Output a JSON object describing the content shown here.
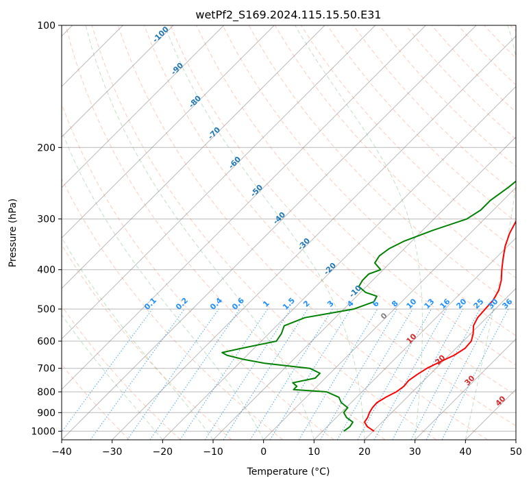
{
  "chart_data": {
    "type": "line",
    "title": "wetPf2_S169.2024.115.15.50.E31",
    "xlabel": "Temperature (°C)",
    "ylabel": "Pressure (hPa)",
    "xlim": [
      -40,
      50
    ],
    "ylim": [
      1050,
      100
    ],
    "y_scale": "log",
    "x_ticks": [
      -40,
      -30,
      -20,
      -10,
      0,
      10,
      20,
      30,
      40,
      50
    ],
    "x_tick_labels": [
      "−40",
      "−30",
      "−20",
      "−10",
      "0",
      "10",
      "20",
      "30",
      "40",
      "50"
    ],
    "y_ticks": [
      100,
      200,
      300,
      400,
      500,
      600,
      700,
      800,
      900,
      1000
    ],
    "y_tick_labels": [
      "100",
      "200",
      "300",
      "400",
      "500",
      "600",
      "700",
      "800",
      "900",
      "1000"
    ],
    "grid": true,
    "skew_deg": 45,
    "series": [
      {
        "color": "#ff0000",
        "points": [
          [
            1000,
            20.2
          ],
          [
            975,
            18.0
          ],
          [
            950,
            16.5
          ],
          [
            925,
            16.2
          ],
          [
            900,
            15.6
          ],
          [
            875,
            15.2
          ],
          [
            850,
            15.1
          ],
          [
            825,
            15.8
          ],
          [
            800,
            16.8
          ],
          [
            775,
            17.2
          ],
          [
            750,
            17.0
          ],
          [
            725,
            17.5
          ],
          [
            700,
            18.2
          ],
          [
            675,
            19.5
          ],
          [
            650,
            21.0
          ],
          [
            625,
            21.8
          ],
          [
            600,
            21.6
          ],
          [
            575,
            20.5
          ],
          [
            550,
            19.0
          ],
          [
            525,
            18.2
          ],
          [
            500,
            18.0
          ],
          [
            475,
            17.8
          ],
          [
            450,
            17.0
          ],
          [
            425,
            15.5
          ],
          [
            400,
            13.5
          ],
          [
            375,
            11.5
          ],
          [
            350,
            9.5
          ],
          [
            325,
            7.8
          ],
          [
            300,
            6.5
          ],
          [
            275,
            4.0
          ],
          [
            250,
            1.0
          ],
          [
            225,
            -2.5
          ],
          [
            200,
            -7.0
          ],
          [
            180,
            -11.5
          ],
          [
            165,
            -13.0
          ],
          [
            150,
            -11.0
          ],
          [
            135,
            -7.0
          ],
          [
            120,
            -4.0
          ],
          [
            110,
            -3.0
          ],
          [
            100,
            -1.5
          ]
        ]
      },
      {
        "color": "#008000",
        "points": [
          [
            1000,
            14.2
          ],
          [
            975,
            14.5
          ],
          [
            950,
            14.2
          ],
          [
            925,
            12.0
          ],
          [
            900,
            10.5
          ],
          [
            875,
            10.3
          ],
          [
            850,
            8.0
          ],
          [
            825,
            6.5
          ],
          [
            800,
            3.0
          ],
          [
            790,
            -4.0
          ],
          [
            775,
            -4.0
          ],
          [
            760,
            -5.5
          ],
          [
            740,
            -2.0
          ],
          [
            720,
            -2.0
          ],
          [
            700,
            -5.0
          ],
          [
            680,
            -15.0
          ],
          [
            665,
            -20.0
          ],
          [
            650,
            -24.0
          ],
          [
            640,
            -25.5
          ],
          [
            625,
            -22.5
          ],
          [
            600,
            -17.0
          ],
          [
            575,
            -17.5
          ],
          [
            550,
            -18.5
          ],
          [
            525,
            -16.0
          ],
          [
            500,
            -8.0
          ],
          [
            480,
            -5.5
          ],
          [
            465,
            -6.0
          ],
          [
            455,
            -9.0
          ],
          [
            440,
            -11.5
          ],
          [
            425,
            -12.0
          ],
          [
            410,
            -12.0
          ],
          [
            400,
            -10.5
          ],
          [
            385,
            -13.0
          ],
          [
            370,
            -13.5
          ],
          [
            355,
            -13.0
          ],
          [
            340,
            -11.5
          ],
          [
            320,
            -8.0
          ],
          [
            300,
            -3.5
          ],
          [
            285,
            -2.5
          ],
          [
            270,
            -2.5
          ],
          [
            250,
            -1.5
          ],
          [
            235,
            -1.0
          ],
          [
            215,
            -2.5
          ],
          [
            200,
            -5.0
          ],
          [
            185,
            -7.5
          ],
          [
            170,
            -11.5
          ],
          [
            160,
            -12.5
          ],
          [
            150,
            -11.5
          ],
          [
            140,
            -9.5
          ],
          [
            130,
            -8.0
          ],
          [
            120,
            -6.5
          ],
          [
            110,
            -4.5
          ],
          [
            100,
            -1.0
          ]
        ]
      }
    ],
    "annotations": {
      "dry_adiabats": [
        "-100",
        "-90",
        "-80",
        "-70",
        "-60",
        "-50",
        "-40",
        "-30",
        "-20",
        "-10"
      ],
      "mixing_ratio": [
        "0.1",
        "0.2",
        "0.4",
        "0.6",
        "1",
        "1.5",
        "2",
        "3",
        "4",
        "6",
        "8",
        "10",
        "13",
        "16",
        "20",
        "25",
        "30",
        "36"
      ],
      "moist_adiabats": [
        "0",
        "10",
        "20",
        "30",
        "40"
      ]
    },
    "colors": {
      "temperature": "#ff0000",
      "dewpoint": "#008000",
      "dry_adiabat_label": "#1f77b4",
      "mixing_ratio_label": "#1e90ff",
      "moist_adiabat_label": "#d62728",
      "zero_label": "#808080"
    }
  }
}
